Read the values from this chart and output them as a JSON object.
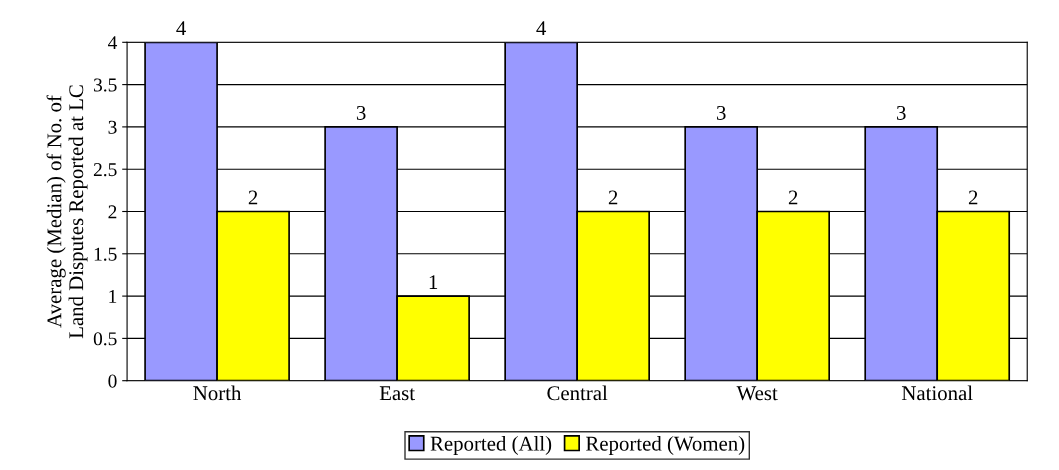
{
  "chart_data": {
    "type": "bar",
    "ylabel": "Average (Median) of No. of\nLand Disputes Reported at LC",
    "categories": [
      "North",
      "East",
      "Central",
      "West",
      "National"
    ],
    "series": [
      {
        "name": "Reported (All)",
        "color": "#9999ff",
        "values": [
          4,
          3,
          4,
          3,
          3
        ]
      },
      {
        "name": "Reported (Women)",
        "color": "#ffff00",
        "values": [
          2,
          1,
          2,
          2,
          2
        ]
      }
    ],
    "ylim": [
      0,
      4
    ],
    "yticks": [
      0,
      0.5,
      1,
      1.5,
      2,
      2.5,
      3,
      3.5,
      4
    ],
    "grid": "y",
    "legend": "bottom",
    "data_labels": true
  }
}
